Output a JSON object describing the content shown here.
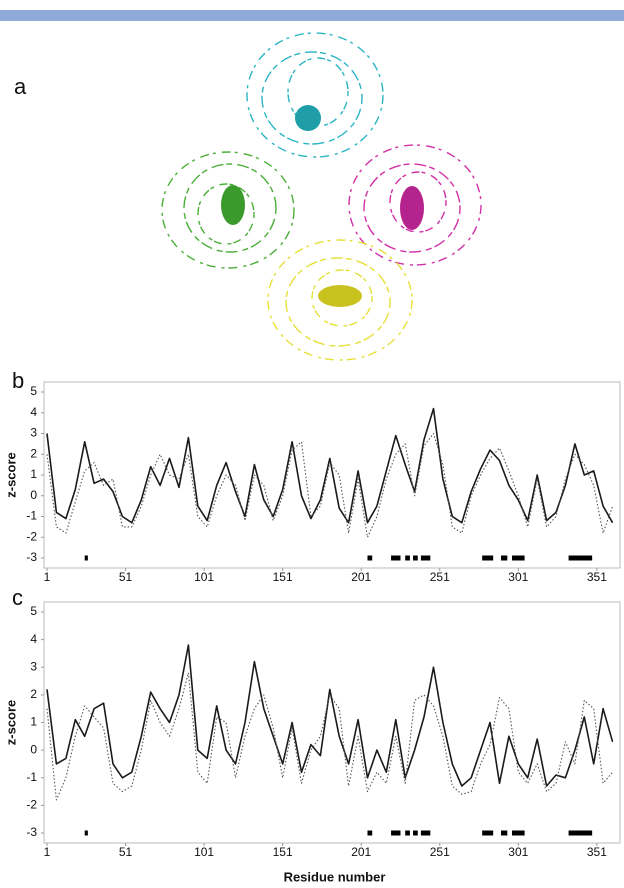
{
  "panels": [
    "a",
    "b",
    "c"
  ],
  "chart_data": [
    {
      "type": "line",
      "y_label": "z-score",
      "x": [
        1,
        7,
        13,
        19,
        25,
        31,
        37,
        43,
        49,
        55,
        61,
        67,
        73,
        79,
        85,
        91,
        97,
        103,
        109,
        115,
        121,
        127,
        133,
        139,
        145,
        151,
        157,
        163,
        169,
        175,
        181,
        187,
        193,
        199,
        205,
        211,
        217,
        223,
        229,
        235,
        241,
        247,
        253,
        259,
        265,
        271,
        277,
        283,
        289,
        295,
        301,
        307,
        313,
        319,
        325,
        331,
        337,
        343,
        349,
        355,
        361
      ],
      "series": [
        {
          "color": "#1a1a1a",
          "dash": "solid",
          "values": [
            3.0,
            -0.8,
            -1.1,
            0.3,
            2.6,
            0.6,
            0.8,
            0.2,
            -1.0,
            -1.3,
            -0.2,
            1.4,
            0.5,
            1.8,
            0.4,
            2.8,
            -0.5,
            -1.2,
            0.5,
            1.6,
            0.2,
            -1.0,
            1.5,
            -0.2,
            -1.0,
            0.3,
            2.6,
            0.0,
            -1.1,
            -0.2,
            1.8,
            -0.6,
            -1.3,
            1.2,
            -1.3,
            -0.5,
            1.2,
            2.9,
            1.5,
            0.2,
            2.7,
            4.2,
            0.8,
            -1.0,
            -1.3,
            0.2,
            1.3,
            2.2,
            1.7,
            0.5,
            -0.2,
            -1.2,
            1.0,
            -1.2,
            -0.8,
            0.5,
            2.5,
            1.0,
            1.2,
            -0.5,
            -1.3
          ]
        },
        {
          "color": "#555555",
          "dash": "dotted",
          "values": [
            2.0,
            -1.5,
            -1.8,
            -0.3,
            1.2,
            1.6,
            0.5,
            0.8,
            -1.5,
            -1.5,
            -0.5,
            1.0,
            2.0,
            1.0,
            0.8,
            2.0,
            -1.0,
            -1.5,
            0.0,
            1.0,
            0.5,
            -1.2,
            1.0,
            0.5,
            -1.2,
            0.0,
            2.2,
            2.6,
            -1.0,
            -0.5,
            1.6,
            1.0,
            -1.8,
            0.8,
            -2.0,
            -1.0,
            0.8,
            2.0,
            2.5,
            0.0,
            2.4,
            3.0,
            1.5,
            -1.5,
            -1.8,
            0.0,
            1.0,
            1.8,
            2.3,
            1.2,
            0.0,
            -1.5,
            0.8,
            -1.5,
            -1.0,
            0.8,
            2.0,
            1.5,
            0.5,
            -1.8,
            -0.5
          ]
        }
      ],
      "segments": [
        [
          25,
          27
        ],
        [
          205,
          208
        ],
        [
          220,
          226
        ],
        [
          229,
          232
        ],
        [
          234,
          237
        ],
        [
          239,
          245
        ],
        [
          278,
          285
        ],
        [
          290,
          294
        ],
        [
          297,
          305
        ],
        [
          333,
          348
        ]
      ],
      "xlim": [
        1,
        367
      ],
      "xticks": [
        1,
        51,
        101,
        151,
        201,
        251,
        301,
        351
      ],
      "ylim": [
        -3,
        5
      ],
      "yticks": [
        -3,
        -2,
        -1,
        0,
        1,
        2,
        3,
        4,
        5
      ]
    },
    {
      "type": "line",
      "y_label": "z-score",
      "x_label": "Residue number",
      "x": [
        1,
        7,
        13,
        19,
        25,
        31,
        37,
        43,
        49,
        55,
        61,
        67,
        73,
        79,
        85,
        91,
        97,
        103,
        109,
        115,
        121,
        127,
        133,
        139,
        145,
        151,
        157,
        163,
        169,
        175,
        181,
        187,
        193,
        199,
        205,
        211,
        217,
        223,
        229,
        235,
        241,
        247,
        253,
        259,
        265,
        271,
        277,
        283,
        289,
        295,
        301,
        307,
        313,
        319,
        325,
        331,
        337,
        343,
        349,
        355,
        361
      ],
      "series": [
        {
          "color": "#1a1a1a",
          "dash": "solid",
          "values": [
            2.2,
            -0.5,
            -0.3,
            1.1,
            0.5,
            1.5,
            1.7,
            -0.5,
            -1.0,
            -0.8,
            0.5,
            2.1,
            1.5,
            1.0,
            2.0,
            3.8,
            0.0,
            -0.3,
            1.6,
            0.0,
            -0.5,
            1.0,
            3.2,
            1.5,
            0.5,
            -0.5,
            1.0,
            -0.8,
            0.2,
            -0.2,
            2.2,
            0.5,
            -0.5,
            1.1,
            -1.0,
            0.0,
            -0.8,
            1.1,
            -1.0,
            0.0,
            1.2,
            3.0,
            1.0,
            -0.5,
            -1.3,
            -1.0,
            0.0,
            1.0,
            -1.2,
            0.5,
            -0.5,
            -1.0,
            0.4,
            -1.3,
            -0.9,
            -1.0,
            0.0,
            1.2,
            -0.5,
            1.5,
            0.3
          ]
        },
        {
          "color": "#555555",
          "dash": "dotted",
          "values": [
            1.5,
            -1.8,
            -1.0,
            0.5,
            1.6,
            1.2,
            0.8,
            -1.2,
            -1.5,
            -1.3,
            0.0,
            1.8,
            1.0,
            0.5,
            1.5,
            2.8,
            -0.8,
            -1.2,
            1.2,
            1.0,
            -1.0,
            0.5,
            1.5,
            2.0,
            0.8,
            -1.0,
            0.8,
            -1.2,
            0.0,
            0.5,
            2.0,
            1.5,
            -1.3,
            0.5,
            -1.5,
            -0.8,
            -1.2,
            0.5,
            -1.2,
            1.8,
            2.0,
            1.6,
            0.5,
            -1.3,
            -1.6,
            -1.5,
            -0.5,
            0.2,
            1.9,
            1.5,
            -0.8,
            -1.2,
            -0.5,
            -1.5,
            -1.2,
            0.3,
            -0.5,
            1.8,
            1.5,
            -1.2,
            -0.8
          ]
        }
      ],
      "segments": [
        [
          25,
          27
        ],
        [
          205,
          208
        ],
        [
          220,
          226
        ],
        [
          229,
          232
        ],
        [
          234,
          237
        ],
        [
          239,
          245
        ],
        [
          278,
          285
        ],
        [
          290,
          294
        ],
        [
          297,
          305
        ],
        [
          333,
          348
        ]
      ],
      "xlim": [
        1,
        367
      ],
      "xticks": [
        1,
        51,
        101,
        151,
        201,
        251,
        301,
        351
      ],
      "ylim": [
        -3,
        5
      ],
      "yticks": [
        -3,
        -2,
        -1,
        0,
        1,
        2,
        3,
        4,
        5
      ]
    }
  ]
}
